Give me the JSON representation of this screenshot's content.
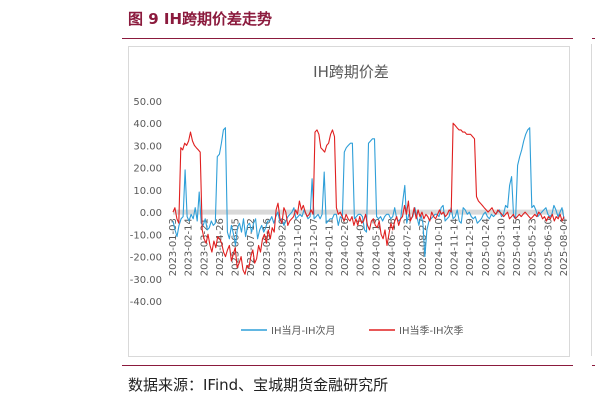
{
  "figure": {
    "number": "图 9",
    "title": "IH跨期价差走势",
    "source": "数据来源：IFind、宝城期货金融研究所"
  },
  "chart_data": {
    "type": "line",
    "title": "IH跨期价差",
    "xlabel": "",
    "ylabel": "",
    "ylim": [
      -40,
      50
    ],
    "y_ticks": [
      "50.00",
      "40.00",
      "30.00",
      "20.00",
      "10.00",
      "0.00",
      "-10.00",
      "-20.00",
      "-30.00",
      "-40.00"
    ],
    "y_tick_values": [
      50,
      40,
      30,
      20,
      10,
      0,
      -10,
      -20,
      -30,
      -40
    ],
    "x_tick_labels": [
      "2023-01-03",
      "2023-02-14",
      "2023-03-21",
      "2023-04-26",
      "2023-06-05",
      "2023-07-12",
      "2023-08-16",
      "2023-09-20",
      "2023-11-02",
      "2023-12-07",
      "2024-01-11",
      "2024-02-26",
      "2024-04-01",
      "2024-05-13",
      "2024-06-18",
      "2024-07-23",
      "2024-08-27",
      "2024-10-10",
      "2024-11-14",
      "2024-12-19",
      "2025-01-24",
      "2025-03-10",
      "2025-04-15",
      "2025-05-23",
      "2025-06-30",
      "2025-08-04"
    ],
    "grid": false,
    "zero_band": true,
    "legend_position": "bottom",
    "series": [
      {
        "name": "IH当月-IH次月",
        "color": "#2f9fd8",
        "values": [
          -4,
          -8,
          -11,
          -6,
          -3,
          -2,
          19,
          -2,
          -4,
          -1,
          -3,
          2,
          -4,
          9,
          -5,
          -6,
          -3,
          -8,
          -7,
          -4,
          -6,
          -5,
          25,
          26,
          31,
          37,
          38,
          -9,
          -12,
          -6,
          -10,
          -15,
          -7,
          -5,
          -9,
          -3,
          -11,
          -6,
          -5,
          -9,
          -5,
          -3,
          -12,
          -8,
          -6,
          -9,
          -7,
          -4,
          -4,
          -2,
          -5,
          -2,
          0,
          -4,
          -3,
          -6,
          -4,
          -2,
          -1,
          0,
          2,
          -3,
          -2,
          -1,
          -2,
          1,
          -1,
          -3,
          -2,
          15,
          -3,
          -2,
          -1,
          -3,
          -1,
          18,
          -5,
          -4,
          -3,
          -3,
          -1,
          -1,
          -6,
          -2,
          -3,
          27,
          29,
          30,
          31,
          31,
          -3,
          -2,
          -1,
          -1,
          -2,
          -8,
          -9,
          31,
          32,
          33,
          33,
          -2,
          -3,
          -2,
          -4,
          -2,
          -1,
          -1,
          -3,
          -2,
          2,
          -3,
          -4,
          -3,
          5,
          12,
          -5,
          -1,
          -3,
          -2,
          2,
          -2,
          -6,
          -1,
          -5,
          -20,
          -8,
          -4,
          -3,
          -2,
          -1,
          -1,
          -2,
          2,
          3,
          -4,
          -3,
          -2,
          2,
          -3,
          -2,
          1,
          -4,
          -5,
          2,
          1,
          -1,
          0,
          -2,
          -3,
          -2,
          -5,
          -4,
          -3,
          -1,
          0,
          -2,
          -3,
          -1,
          -2,
          -1,
          0,
          1,
          -2,
          -1,
          3,
          2,
          12,
          16,
          -2,
          -3,
          21,
          25,
          28,
          32,
          35,
          37,
          38,
          2,
          3,
          1,
          -2,
          -1,
          0,
          1,
          2,
          -1,
          -2,
          -1,
          3,
          1,
          -2,
          0,
          2,
          -3
        ]
      },
      {
        "name": "IH当季-IH次季",
        "color": "#e02020",
        "values": [
          0,
          2,
          -3,
          -5,
          29,
          28,
          31,
          30,
          32,
          36,
          32,
          30,
          29,
          28,
          27,
          -8,
          -12,
          -14,
          -10,
          -15,
          -18,
          -13,
          -16,
          -11,
          -12,
          -14,
          -18,
          -20,
          -17,
          -15,
          -22,
          -19,
          -16,
          -25,
          -23,
          -20,
          -26,
          -28,
          -24,
          -25,
          -20,
          -17,
          -23,
          -21,
          -15,
          -18,
          -12,
          -10,
          -14,
          -8,
          -12,
          -7,
          -9,
          1,
          4,
          -3,
          -5,
          2,
          0,
          -6,
          -4,
          -3,
          -2,
          1,
          -1,
          5,
          1,
          3,
          0,
          -2,
          -1,
          1,
          -1,
          36,
          37,
          35,
          29,
          28,
          27,
          30,
          31,
          35,
          37,
          34,
          2,
          -1,
          0,
          -2,
          -4,
          -1,
          -3,
          -4,
          -2,
          -6,
          -3,
          -6,
          -2,
          -5,
          -4,
          -1,
          -6,
          -8,
          -4,
          -3,
          -6,
          -7,
          -4,
          -10,
          -12,
          -8,
          -15,
          -10,
          -5,
          -8,
          -4,
          -2,
          -6,
          -3,
          -2,
          3,
          -1,
          5,
          -4,
          -2,
          2,
          -3,
          1,
          -2,
          0,
          -3,
          -1,
          -2,
          -4,
          0,
          -2,
          -3,
          -1,
          1,
          -1,
          0,
          -2,
          -1,
          1,
          0,
          40,
          39,
          38,
          37,
          37,
          36,
          36,
          35,
          35,
          35,
          34,
          33,
          7,
          5,
          4,
          3,
          2,
          1,
          0,
          1,
          2,
          0,
          -1,
          1,
          0,
          -1,
          -2,
          -1,
          0,
          -3,
          -2,
          -1,
          -3,
          -2,
          -1,
          -2,
          -1,
          0,
          -1,
          -2,
          -3,
          -2,
          -1,
          -2,
          0,
          -1,
          -3,
          -2,
          -4,
          -2,
          -3,
          -1,
          -4,
          -2,
          -3,
          -1,
          -4,
          -2
        ]
      }
    ]
  }
}
